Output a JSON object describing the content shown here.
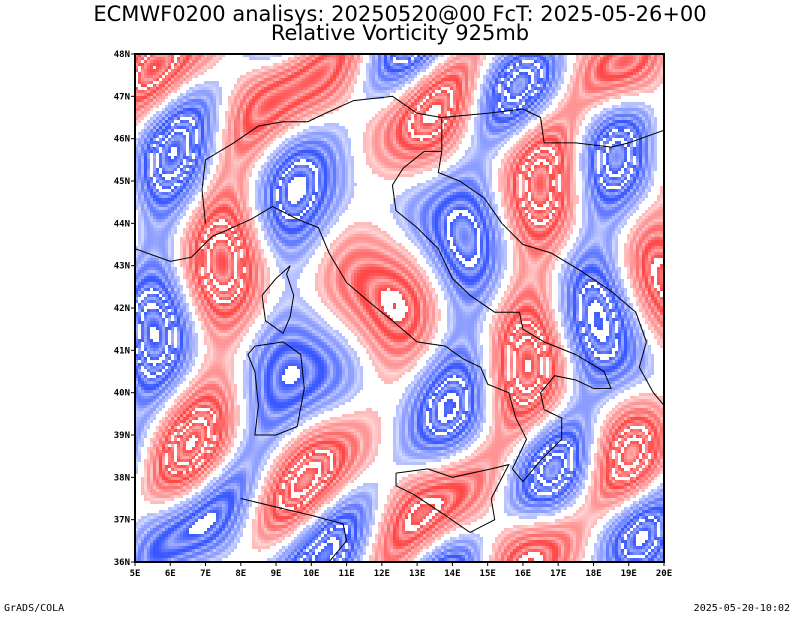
{
  "title": {
    "line1": "ECMWF0200 analisys: 20250520@00 FcT: 2025-05-26+00",
    "line2": "Relative Vorticity 925mb"
  },
  "map": {
    "lon_range": [
      5,
      20
    ],
    "lat_range": [
      36,
      48
    ],
    "x_ticks": [
      "5E",
      "6E",
      "7E",
      "8E",
      "9E",
      "10E",
      "11E",
      "12E",
      "13E",
      "14E",
      "15E",
      "16E",
      "17E",
      "18E",
      "19E",
      "20E"
    ],
    "y_ticks": [
      "36N",
      "37N",
      "38N",
      "39N",
      "40N",
      "41N",
      "42N",
      "43N",
      "44N",
      "45N",
      "46N",
      "47N",
      "48N"
    ],
    "colors": {
      "positive": "#ff4040",
      "negative": "#3050ff",
      "coast": "#000000"
    }
  },
  "footer": {
    "left": "GrADS/COLA",
    "right": "2025-05-20-10:02"
  }
}
